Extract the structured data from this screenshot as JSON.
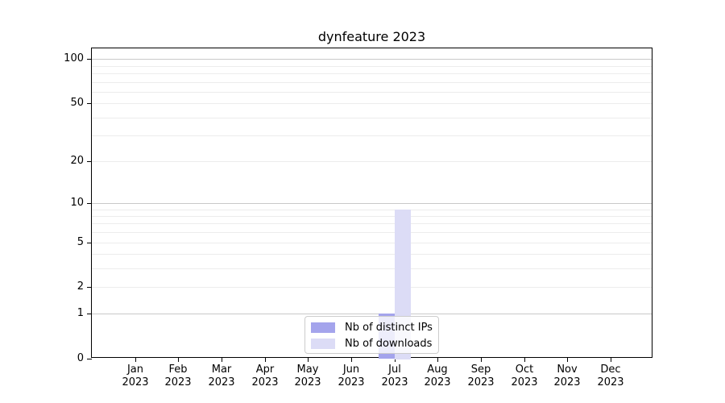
{
  "chart_data": {
    "type": "bar",
    "title": "dynfeature 2023",
    "categories": [
      "Jan",
      "Feb",
      "Mar",
      "Apr",
      "May",
      "Jun",
      "Jul",
      "Aug",
      "Sep",
      "Oct",
      "Nov",
      "Dec"
    ],
    "year_label": "2023",
    "series": [
      {
        "name": "Nb of distinct IPs",
        "color": "#a4a4ec",
        "values": [
          0,
          0,
          0,
          0,
          0,
          0,
          1,
          0,
          0,
          0,
          0,
          0
        ]
      },
      {
        "name": "Nb of downloads",
        "color": "#dcdcf6",
        "values": [
          0,
          0,
          0,
          0,
          0,
          0,
          9,
          0,
          0,
          0,
          0,
          0
        ]
      }
    ],
    "yscale": "log1p",
    "ylim": [
      0,
      118
    ],
    "ytick_labels": [
      0,
      1,
      2,
      5,
      10,
      20,
      50,
      100
    ],
    "grid_major": [
      1,
      10,
      100
    ],
    "grid_minor": [
      2,
      3,
      4,
      5,
      6,
      7,
      8,
      9,
      20,
      30,
      40,
      50,
      60,
      70,
      80,
      90
    ],
    "grid_on": true,
    "legend_position": "lower center",
    "colors": {
      "grid_major": "#c9c9c9",
      "grid_minor": "#ececec",
      "axis": "#000000",
      "background": "#ffffff"
    }
  }
}
